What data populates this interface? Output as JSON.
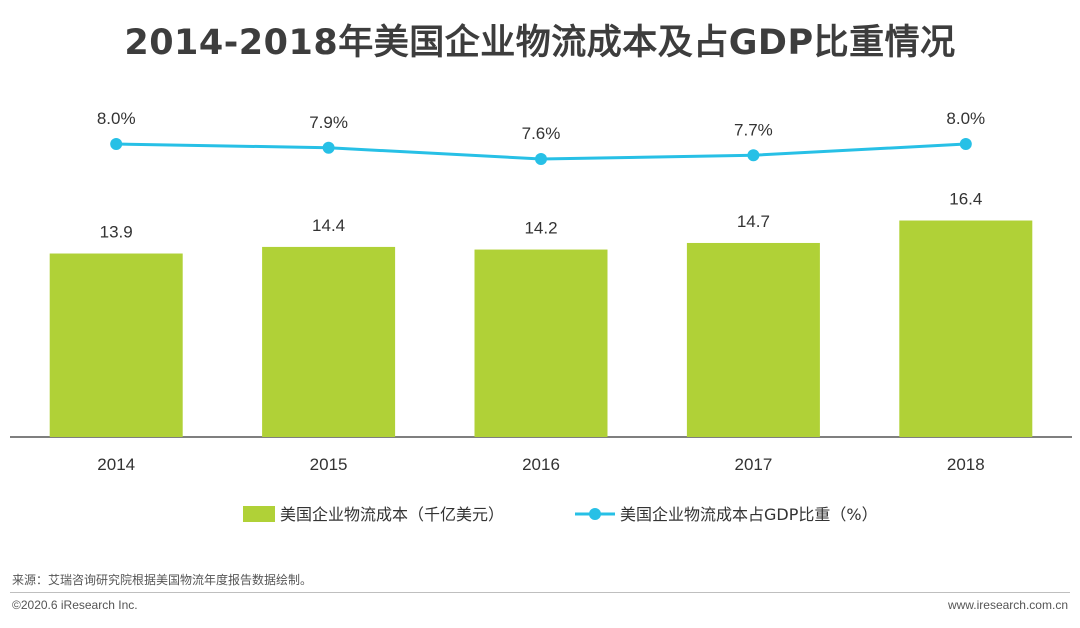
{
  "chart_data": {
    "type": "bar+line",
    "title": "2014-2018年美国企业物流成本及占GDP比重情况",
    "categories": [
      "2014",
      "2015",
      "2016",
      "2017",
      "2018"
    ],
    "series": [
      {
        "name": "美国企业物流成本（千亿美元）",
        "type": "bar",
        "values": [
          13.9,
          14.4,
          14.2,
          14.7,
          16.4
        ],
        "labels": [
          "13.9",
          "14.4",
          "14.2",
          "14.7",
          "16.4"
        ],
        "color": "#b0d137",
        "ylim": [
          0,
          18
        ]
      },
      {
        "name": "美国企业物流成本占GDP比重（%）",
        "type": "line",
        "values": [
          8.0,
          7.9,
          7.6,
          7.7,
          8.0
        ],
        "labels": [
          "8.0%",
          "7.9%",
          "7.6%",
          "7.7%",
          "8.0%"
        ],
        "color": "#27c0e6",
        "ylim": [
          0,
          9
        ]
      }
    ],
    "legend_position": "bottom"
  },
  "footer": {
    "source": "来源：艾瑞咨询研究院根据美国物流年度报告数据绘制。",
    "copyright": "©2020.6 iResearch Inc.",
    "site": "www.iresearch.com.cn"
  }
}
